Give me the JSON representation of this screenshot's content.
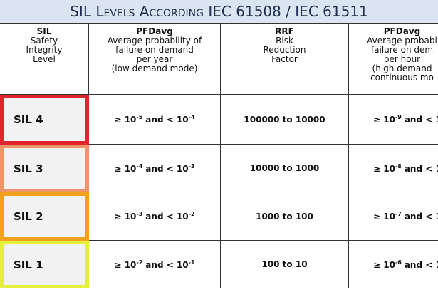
{
  "title": "SIL Levels According IEC 61508 / IEC 61511",
  "header": [
    {
      "title": "SIL",
      "lines": [
        "Safety",
        "Integrity",
        "Level"
      ]
    },
    {
      "title": "PFDavg",
      "lines": [
        "Average probability of",
        "failure on demand",
        "per year",
        "(low demand mode)"
      ]
    },
    {
      "title": "RRF",
      "lines": [
        "Risk",
        "Reduction",
        "Factor"
      ]
    },
    {
      "title": "PFDavg",
      "lines": [
        "Average probabi",
        "failure on dem",
        "per hour",
        "(high demand",
        "continuous mo"
      ]
    }
  ],
  "rows": [
    {
      "sil": "SIL 4",
      "border_color": "#e2252b",
      "pfd_low": {
        "lo_base": "≥ 10",
        "lo_exp": "-5",
        "hi_base": "and < 10",
        "hi_exp": "-4"
      },
      "rrf": "100000 to 10000",
      "pfd_high": {
        "lo_base": "≥ 10",
        "lo_exp": "-9",
        "hi_base": "and < 1"
      }
    },
    {
      "sil": "SIL 3",
      "border_color": "#ef9468",
      "pfd_low": {
        "lo_base": "≥ 10",
        "lo_exp": "-4",
        "hi_base": "and < 10",
        "hi_exp": "-3"
      },
      "rrf": "10000 to 1000",
      "pfd_high": {
        "lo_base": "≥ 10",
        "lo_exp": "-8",
        "hi_base": "and < 1"
      }
    },
    {
      "sil": "SIL 2",
      "border_color": "#f2a11c",
      "pfd_low": {
        "lo_base": "≥ 10",
        "lo_exp": "-3",
        "hi_base": "and < 10",
        "hi_exp": "-2"
      },
      "rrf": "1000 to 100",
      "pfd_high": {
        "lo_base": "≥ 10",
        "lo_exp": "-7",
        "hi_base": "and < 1"
      }
    },
    {
      "sil": "SIL 1",
      "border_color": "#e6ef3a",
      "pfd_low": {
        "lo_base": "≥ 10",
        "lo_exp": "-2",
        "hi_base": "and < 10",
        "hi_exp": "-1"
      },
      "rrf": "100 to 10",
      "pfd_high": {
        "lo_base": "≥ 10",
        "lo_exp": "-6",
        "hi_base": "and < 1"
      }
    }
  ]
}
